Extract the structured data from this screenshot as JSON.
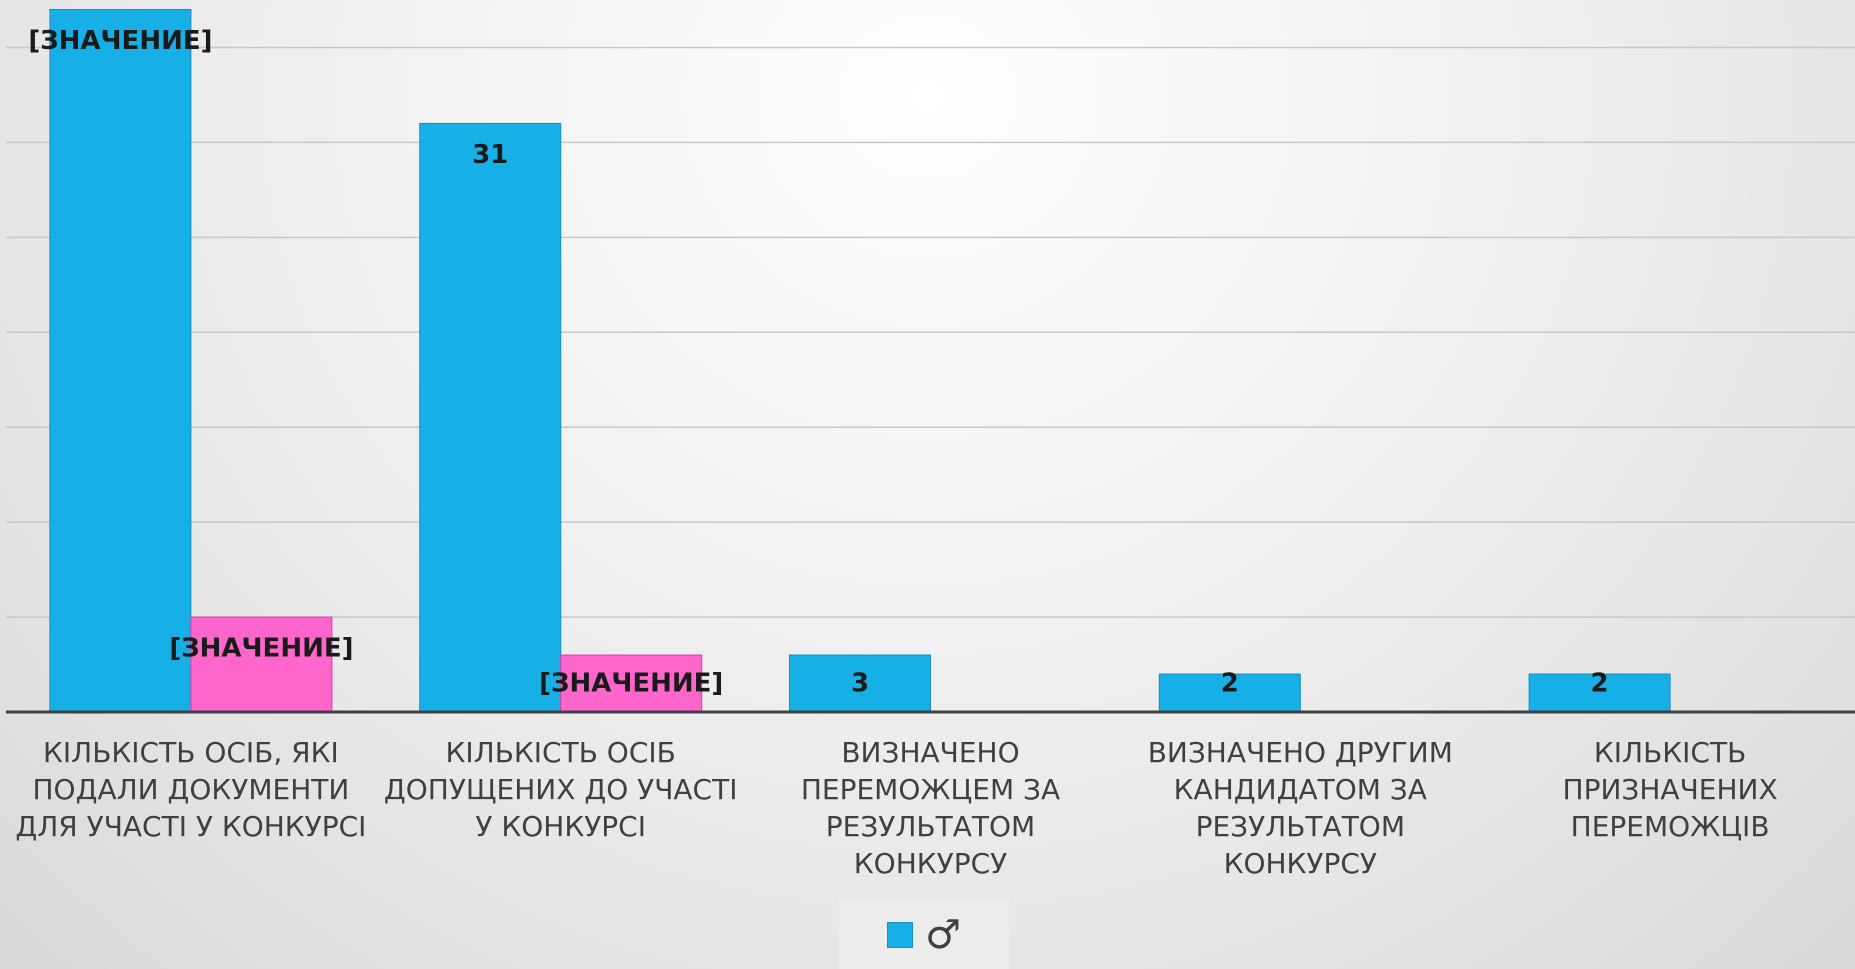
{
  "chart_data": {
    "type": "bar",
    "categories": [
      "КІЛЬКІСТЬ ОСІБ, ЯКІ\nПОДАЛИ ДОКУМЕНТИ\nДЛЯ УЧАСТІ У КОНКУРСІ",
      "КІЛЬКІСТЬ ОСІБ\nДОПУЩЕНИХ ДО УЧАСТІ\nУ КОНКУРСІ",
      "ВИЗНАЧЕНО\nПЕРЕМОЖЦЕМ ЗА\nРЕЗУЛЬТАТОМ\nКОНКУРСУ",
      "ВИЗНАЧЕНО ДРУГИМ\nКАНДИДАТОМ ЗА\nРЕЗУЛЬТАТОМ\nКОНКУРСУ",
      "КІЛЬКІСТЬ\nПРИЗНАЧЕНИХ\nПЕРЕМОЖЦІВ"
    ],
    "series": [
      {
        "name": "♂",
        "color": "#17b0e6",
        "values": [
          37,
          31,
          3,
          2,
          2
        ],
        "value_labels": [
          "[ЗНАЧЕНИЕ]",
          "31",
          "3",
          "2",
          "2"
        ]
      },
      {
        "color": "#ff66cc",
        "values": [
          5,
          3,
          null,
          null,
          null
        ],
        "value_labels": [
          "[ЗНАЧЕНИЕ]",
          "[ЗНАЧЕНИЕ]",
          null,
          null,
          null
        ]
      }
    ],
    "ylim": [
      0,
      37.5
    ],
    "yticks": [
      0,
      5,
      10,
      15,
      20,
      25,
      30,
      35
    ],
    "grid": true
  }
}
